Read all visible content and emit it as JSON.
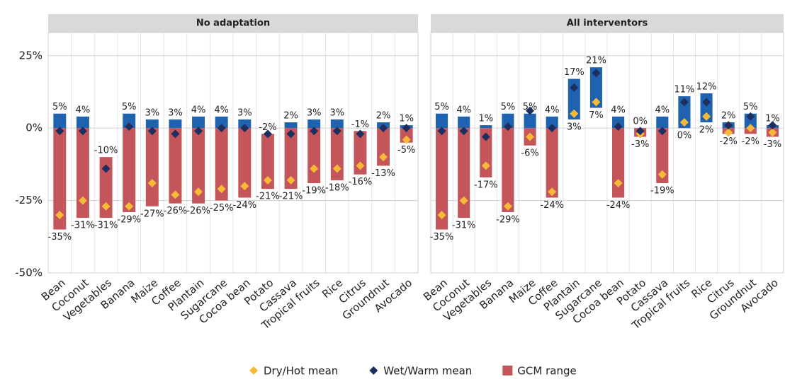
{
  "chart_data": [
    {
      "type": "range_bar",
      "title": "No adaptation",
      "categories": [
        "Bean",
        "Coconut",
        "Vegetables",
        "Banana",
        "Maize",
        "Coffee",
        "Plantain",
        "Sugarcane",
        "Cocoa bean",
        "Potato",
        "Cassava",
        "Tropical fruits",
        "Rice",
        "Citrus",
        "Groundnut",
        "Avocado"
      ],
      "ylim": [
        -50,
        33
      ],
      "yticks": [
        {
          "value": 25,
          "label": "25%"
        },
        {
          "value": 0,
          "label": "0%"
        },
        {
          "value": -25,
          "label": "-25%"
        },
        {
          "value": -50,
          "label": "-50%"
        }
      ],
      "grid": true,
      "series": [
        {
          "name": "Dry/Hot mean",
          "color": "#f6b938",
          "values": [
            -30,
            -25,
            -27,
            -27,
            -19,
            -23,
            -22,
            -21,
            -20,
            -18,
            -18,
            -14,
            -14,
            -13,
            -10,
            -4
          ]
        },
        {
          "name": "Wet/Warm mean",
          "color": "#1c2f5e",
          "values": [
            -1,
            -1,
            -14,
            0.5,
            -1,
            -2,
            -1,
            0,
            0,
            -2,
            -2,
            -1,
            -1,
            -2,
            0,
            0
          ]
        },
        {
          "name": "GCM range",
          "color": "#c4555a",
          "positive_color": "#1f62b0",
          "high": [
            5,
            4,
            -10,
            5,
            3,
            3,
            4,
            4,
            3,
            -2,
            2,
            3,
            3,
            -1,
            2,
            1
          ],
          "low": [
            -35,
            -31,
            -31,
            -29,
            -27,
            -26,
            -26,
            -25,
            -24,
            -21,
            -21,
            -19,
            -18,
            -16,
            -13,
            -5
          ],
          "high_labels": [
            "5%",
            "4%",
            "-10%",
            "5%",
            "3%",
            "3%",
            "4%",
            "4%",
            "3%",
            "-2%",
            "2%",
            "3%",
            "3%",
            "-1%",
            "2%",
            "1%"
          ],
          "low_labels": [
            "-35%",
            "-31%",
            "-31%",
            "-29%",
            "-27%",
            "-26%",
            "-26%",
            "-25%",
            "-24%",
            "-21%",
            "-21%",
            "-19%",
            "-18%",
            "-16%",
            "-13%",
            "-5%"
          ]
        }
      ]
    },
    {
      "type": "range_bar",
      "title": "All interventors",
      "categories": [
        "Bean",
        "Coconut",
        "Vegetables",
        "Banana",
        "Maize",
        "Coffee",
        "Plantain",
        "Sugarcane",
        "Cocoa bean",
        "Potato",
        "Cassava",
        "Tropical fruits",
        "Rice",
        "Citrus",
        "Groundnut",
        "Avocado"
      ],
      "ylim": [
        -50,
        33
      ],
      "yticks": [
        25,
        0,
        -25,
        -50
      ],
      "grid": true,
      "series": [
        {
          "name": "Dry/Hot mean",
          "color": "#f6b938",
          "values": [
            -30,
            -25,
            -13,
            -27,
            -3,
            -22,
            5,
            9,
            -19,
            -2,
            -16,
            2,
            4,
            -1.5,
            0,
            -1.5
          ]
        },
        {
          "name": "Wet/Warm mean",
          "color": "#1c2f5e",
          "values": [
            -1,
            -1,
            -3,
            0.5,
            6,
            0,
            14,
            19,
            0.5,
            -1,
            -1,
            9,
            9,
            1,
            4,
            1
          ]
        },
        {
          "name": "GCM range",
          "color": "#c4555a",
          "positive_color": "#1f62b0",
          "high": [
            5,
            4,
            1,
            5,
            5,
            4,
            17,
            21,
            4,
            0,
            4,
            11,
            12,
            2,
            5,
            1
          ],
          "low": [
            -35,
            -31,
            -17,
            -29,
            -6,
            -24,
            3,
            7,
            -24,
            -3,
            -19,
            0,
            2,
            -2,
            -2,
            -3
          ],
          "high_labels": [
            "5%",
            "4%",
            "1%",
            "5%",
            "5%",
            "4%",
            "17%",
            "21%",
            "4%",
            "0%",
            "4%",
            "11%",
            "12%",
            "2%",
            "5%",
            "1%"
          ],
          "low_labels": [
            "-35%",
            "-31%",
            "-17%",
            "-29%",
            "-6%",
            "-24%",
            "3%",
            "7%",
            "-24%",
            "-3%",
            "-19%",
            "0%",
            "2%",
            "-2%",
            "-2%",
            "-3%"
          ]
        }
      ]
    }
  ]
}
